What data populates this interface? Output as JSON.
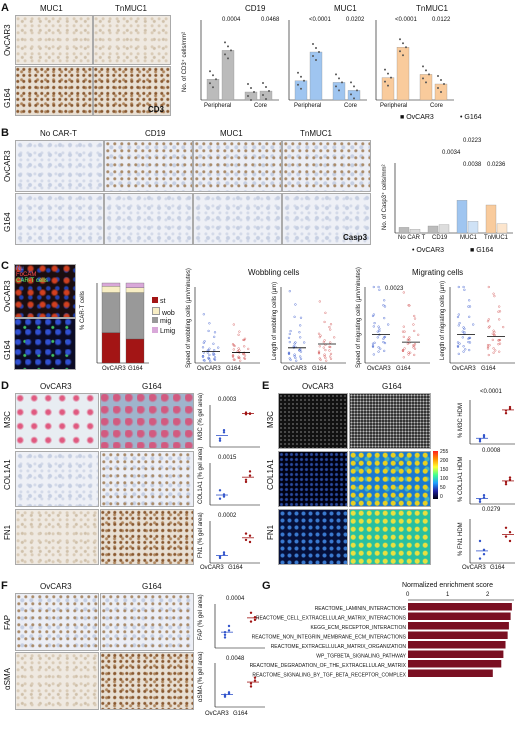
{
  "panels": {
    "a": {
      "label": "A",
      "col_headers": [
        "MUC1",
        "TnMUC1"
      ],
      "row_labels": [
        "OvCAR3",
        "G164"
      ],
      "stain": "CD3",
      "charts": [
        {
          "title": "CD19",
          "ylabel": "No. of CD3⁺ cells/mm²",
          "pvals": [
            "0.0004",
            "0.0468"
          ],
          "categories": [
            "Peripheral",
            "Core"
          ],
          "color": "#999999"
        },
        {
          "title": "MUC1",
          "pvals": [
            "<0.0001",
            "0.0202"
          ],
          "categories": [
            "Peripheral",
            "Core"
          ],
          "color": "#6fa8dc"
        },
        {
          "title": "TnMUC1",
          "pvals": [
            "<0.0001",
            "0.0122"
          ],
          "categories": [
            "Peripheral",
            "Core"
          ],
          "color": "#f6b26b"
        }
      ],
      "legend": [
        "OvCAR3",
        "G164"
      ]
    },
    "b": {
      "label": "B",
      "col_headers": [
        "No CAR-T",
        "CD19",
        "MUC1",
        "TnMUC1"
      ],
      "row_labels": [
        "OvCAR3",
        "G164"
      ],
      "stain": "Casp3",
      "ylabel": "No. of Casp3⁺ cells/mm²",
      "pvals": [
        "0.0223",
        "0.0034",
        "0.0038",
        "0.0236"
      ],
      "legend": [
        "OvCAR3",
        "G164"
      ],
      "categories": [
        "No CAR T",
        "CD19",
        "MUC1",
        "TnMUC1"
      ]
    },
    "c": {
      "label": "C",
      "row_labels": [
        "OvCAR3",
        "G164"
      ],
      "fluo_legend": [
        "Nu",
        "FoCAM",
        "CAR-T cells"
      ],
      "stack_ylabel": "% CAR-T cells",
      "stack_legend": [
        "st",
        "wob",
        "mig",
        "Lmig"
      ],
      "wobbling_title": "Wobbling cells",
      "migrating_title": "Migrating cells",
      "scatter_labels": [
        "Speed of wobbling cells (µm/minutes)",
        "Length of wobbling cells (µm)",
        "Speed of migrating cells (µm/minutes)",
        "Length of migrating cells (µm)"
      ],
      "pval": "0.0023",
      "categories": [
        "OvCAR3",
        "G164"
      ]
    },
    "d": {
      "label": "D",
      "col_headers": [
        "OvCAR3",
        "G164"
      ],
      "row_labels": [
        "M3C",
        "COL1A1",
        "FN1"
      ],
      "ylabels": [
        "M3C (% gel area)",
        "COL1A1 (% gel area)",
        "FN1 (% gel area)"
      ],
      "pvals": [
        "0.0003",
        "0.0015",
        "0.0002"
      ],
      "categories": [
        "OvCAR3",
        "G164"
      ]
    },
    "e": {
      "label": "E",
      "col_headers": [
        "OvCAR3",
        "G164"
      ],
      "row_labels": [
        "M3C",
        "COL1A1",
        "FN1"
      ],
      "ylabels": [
        "% M3C HDM",
        "% COL1A1 HDM",
        "% FN1 HDM"
      ],
      "pvals": [
        "<0.0001",
        "0.0008",
        "0.0279"
      ],
      "colorbar": [
        "255",
        "200",
        "150",
        "100",
        "50",
        "0"
      ],
      "categories": [
        "OvCAR3",
        "G164"
      ]
    },
    "f": {
      "label": "F",
      "col_headers": [
        "OvCAR3",
        "G164"
      ],
      "row_labels": [
        "FAP",
        "αSMA"
      ],
      "ylabels": [
        "FAP (% gel area)",
        "αSMA (% gel area)"
      ],
      "pvals": [
        "0.0004",
        "0.0048"
      ],
      "categories": [
        "OvCAR3",
        "G164"
      ]
    },
    "g": {
      "label": "G",
      "xlabel": "Normalized enrichment score",
      "ticks": [
        "0",
        "1",
        "2"
      ]
    }
  },
  "chart_data": [
    {
      "type": "bar",
      "title": "CD19",
      "categories": [
        "Peripheral",
        "Core"
      ],
      "series": [
        {
          "name": "OvCAR3",
          "values": [
            650,
            250
          ]
        },
        {
          "name": "G164",
          "values": [
            1550,
            280
          ]
        }
      ],
      "ylim": [
        0,
        2500
      ]
    },
    {
      "type": "bar",
      "title": "MUC1",
      "categories": [
        "Peripheral",
        "Core"
      ],
      "series": [
        {
          "name": "OvCAR3",
          "values": [
            600,
            550
          ]
        },
        {
          "name": "G164",
          "values": [
            1500,
            300
          ]
        }
      ],
      "ylim": [
        0,
        2500
      ]
    },
    {
      "type": "bar",
      "title": "TnMUC1",
      "categories": [
        "Peripheral",
        "Core"
      ],
      "series": [
        {
          "name": "OvCAR3",
          "values": [
            700,
            800
          ]
        },
        {
          "name": "G164",
          "values": [
            1650,
            500
          ]
        }
      ],
      "ylim": [
        0,
        2500
      ]
    },
    {
      "type": "bar",
      "categories": [
        "No CAR T",
        "CD19",
        "MUC1",
        "TnMUC1"
      ],
      "series": [
        {
          "name": "OvCAR3",
          "values": [
            120,
            150,
            700,
            600
          ]
        },
        {
          "name": "G164",
          "values": [
            80,
            180,
            250,
            200
          ]
        }
      ],
      "ylim": [
        0,
        1500
      ]
    },
    {
      "type": "bar",
      "ylabel": "% CAR-T cells",
      "categories": [
        "OvCAR3",
        "G164"
      ],
      "series": [
        {
          "name": "st",
          "values": [
            38,
            30
          ]
        },
        {
          "name": "wob",
          "values": [
            50,
            58
          ]
        },
        {
          "name": "mig",
          "values": [
            8,
            6
          ]
        },
        {
          "name": "Lmig",
          "values": [
            4,
            6
          ]
        }
      ],
      "ylim": [
        0,
        100
      ]
    },
    {
      "type": "scatter",
      "title": "Wobbling cells",
      "categories": [
        "OvCAR3",
        "G164"
      ],
      "ylim": [
        0,
        8
      ],
      "series": [
        {
          "name": "OvCAR3",
          "values": [
            1.2,
            0.8,
            1.5,
            0.5,
            2.5,
            1.0,
            3.8,
            0.3
          ]
        },
        {
          "name": "G164",
          "values": [
            1.1,
            0.9,
            1.8,
            0.6,
            2.2,
            1.3,
            3.0,
            0.4
          ]
        }
      ]
    },
    {
      "type": "scatter",
      "categories": [
        "OvCAR3",
        "G164"
      ],
      "ylim": [
        0,
        20
      ],
      "series": [
        {
          "name": "OvCAR3",
          "values": [
            4,
            3,
            6,
            2,
            9,
            5,
            14,
            1
          ]
        },
        {
          "name": "G164",
          "values": [
            5,
            3,
            7,
            2,
            8,
            4,
            12,
            1
          ]
        }
      ]
    },
    {
      "type": "scatter",
      "title": "Migrating cells",
      "categories": [
        "OvCAR3",
        "G164"
      ],
      "ylim": [
        0,
        8
      ],
      "series": [
        {
          "name": "OvCAR3",
          "values": [
            3,
            2,
            4.5,
            1.5,
            6,
            3.5,
            7,
            2.5
          ]
        },
        {
          "name": "G164",
          "values": [
            2.2,
            1.5,
            3,
            1,
            4.5,
            2.5,
            5.5,
            1.8
          ]
        }
      ]
    },
    {
      "type": "scatter",
      "categories": [
        "OvCAR3",
        "G164"
      ],
      "ylim": [
        0,
        40
      ],
      "series": [
        {
          "name": "OvCAR3",
          "values": [
            15,
            10,
            22,
            8,
            30,
            18,
            35,
            12
          ]
        },
        {
          "name": "G164",
          "values": [
            14,
            9,
            20,
            7,
            27,
            17,
            32,
            11
          ]
        }
      ]
    },
    {
      "type": "scatter",
      "ylabel": "M3C (% gel area)",
      "categories": [
        "OvCAR3",
        "G164"
      ],
      "ylim": [
        0,
        100
      ],
      "series": [
        {
          "name": "OvCAR3",
          "values": [
            20,
            35,
            15,
            40
          ]
        },
        {
          "name": "G164",
          "values": [
            78,
            80,
            82,
            79
          ]
        }
      ]
    },
    {
      "type": "scatter",
      "ylabel": "COL1A1 (% gel area)",
      "categories": [
        "OvCAR3",
        "G164"
      ],
      "ylim": [
        0,
        100
      ],
      "series": [
        {
          "name": "OvCAR3",
          "values": [
            15,
            25,
            35,
            20
          ]
        },
        {
          "name": "G164",
          "values": [
            60,
            80,
            55,
            70
          ]
        }
      ]
    },
    {
      "type": "scatter",
      "ylabel": "FN1 (% gel area)",
      "categories": [
        "OvCAR3",
        "G164"
      ],
      "ylim": [
        0,
        100
      ],
      "series": [
        {
          "name": "OvCAR3",
          "values": [
            15,
            20,
            12,
            25
          ]
        },
        {
          "name": "G164",
          "values": [
            55,
            65,
            70,
            50
          ]
        }
      ]
    },
    {
      "type": "scatter",
      "ylabel": "% M3C HDM",
      "categories": [
        "OvCAR3",
        "G164"
      ],
      "ylim": [
        0,
        50
      ],
      "series": [
        {
          "name": "OvCAR3",
          "values": [
            5,
            10,
            3,
            8
          ]
        },
        {
          "name": "G164",
          "values": [
            38,
            40,
            35,
            42
          ]
        }
      ]
    },
    {
      "type": "scatter",
      "ylabel": "% COL1A1 HDM",
      "categories": [
        "OvCAR3",
        "G164"
      ],
      "ylim": [
        0,
        1
      ],
      "series": [
        {
          "name": "OvCAR3",
          "values": [
            0.1,
            0.2,
            0.05,
            0.15
          ]
        },
        {
          "name": "G164",
          "values": [
            0.5,
            0.6,
            0.45,
            0.55
          ]
        }
      ]
    },
    {
      "type": "scatter",
      "ylabel": "% FN1 HDM",
      "categories": [
        "OvCAR3",
        "G164"
      ],
      "ylim": [
        0,
        1
      ],
      "series": [
        {
          "name": "OvCAR3",
          "values": [
            0.1,
            0.3,
            0.5,
            0.2
          ]
        },
        {
          "name": "G164",
          "values": [
            0.6,
            0.7,
            0.8,
            0.5
          ]
        }
      ]
    },
    {
      "type": "scatter",
      "ylabel": "FAP (% gel area)",
      "categories": [
        "OvCAR3",
        "G164"
      ],
      "ylim": [
        0,
        5
      ],
      "series": [
        {
          "name": "OvCAR3",
          "values": [
            1.5,
            2.0,
            1.2,
            2.5,
            1.8
          ]
        },
        {
          "name": "G164",
          "values": [
            3.0,
            3.5,
            4.0,
            3.2
          ]
        }
      ]
    },
    {
      "type": "scatter",
      "ylabel": "αSMA (% gel area)",
      "categories": [
        "OvCAR3",
        "G164"
      ],
      "ylim": [
        0,
        15
      ],
      "series": [
        {
          "name": "OvCAR3",
          "values": [
            4,
            4.5,
            3.5,
            5,
            4.2
          ]
        },
        {
          "name": "G164",
          "values": [
            8,
            10,
            7,
            9
          ]
        }
      ]
    },
    {
      "type": "bar",
      "orientation": "horizontal",
      "xlabel": "Normalized enrichment score",
      "categories": [
        "REACTOME_LAMININ_INTERACTIONS",
        "REACTOME_CELL_EXTRACELLULAR_MATRIX_INTERACTIONS",
        "KEGG_ECM_RECEPTOR_INTERACTION",
        "REACTOME_NON_INTEGRIN_MEMBRANE_ECM_INTERACTIONS",
        "REACTOME_EXTRACELLULAR_MATRIX_ORGANIZATION",
        "WP_TGFBETA_SIGNALING_PATHWAY",
        "REACTOME_DEGRADATION_OF_THE_EXTRACELLULAR_MATRIX",
        "REACTOME_SIGNALING_BY_TGF_BETA_RECEPTOR_COMPLEX"
      ],
      "values": [
        2.45,
        2.42,
        2.38,
        2.35,
        2.3,
        2.25,
        2.2,
        2.0
      ],
      "xlim": [
        0,
        2.5
      ]
    }
  ]
}
